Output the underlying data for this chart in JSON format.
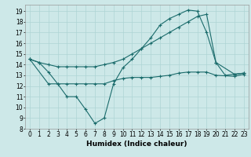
{
  "title": "",
  "xlabel": "Humidex (Indice chaleur)",
  "background_color": "#cde8e8",
  "grid_color": "#aed4d4",
  "line_color": "#1a6b6b",
  "xlim": [
    -0.5,
    23.5
  ],
  "ylim": [
    8,
    19.6
  ],
  "yticks": [
    8,
    9,
    10,
    11,
    12,
    13,
    14,
    15,
    16,
    17,
    18,
    19
  ],
  "xticks": [
    0,
    1,
    2,
    3,
    4,
    5,
    6,
    7,
    8,
    9,
    10,
    11,
    12,
    13,
    14,
    15,
    16,
    17,
    18,
    19,
    20,
    21,
    22,
    23
  ],
  "line1_x": [
    0,
    1,
    2,
    3,
    4,
    5,
    6,
    7,
    8,
    9,
    10,
    11,
    12,
    13,
    14,
    15,
    16,
    17,
    18,
    19,
    20,
    21,
    22,
    23
  ],
  "line1_y": [
    14.5,
    14.2,
    13.3,
    12.2,
    11.0,
    11.0,
    9.8,
    8.5,
    9.0,
    12.2,
    13.7,
    14.5,
    15.5,
    16.5,
    17.7,
    18.3,
    18.7,
    19.1,
    19.0,
    17.0,
    14.2,
    13.0,
    13.1,
    13.2
  ],
  "line2_x": [
    0,
    1,
    2,
    3,
    4,
    5,
    6,
    7,
    8,
    9,
    10,
    11,
    12,
    13,
    14,
    15,
    16,
    17,
    18,
    19,
    20,
    22,
    23
  ],
  "line2_y": [
    14.5,
    14.2,
    14.0,
    13.8,
    13.8,
    13.8,
    13.8,
    13.8,
    14.0,
    14.2,
    14.5,
    15.0,
    15.5,
    16.0,
    16.5,
    17.0,
    17.5,
    18.0,
    18.5,
    18.7,
    14.2,
    13.1,
    13.2
  ],
  "line3_x": [
    0,
    2,
    3,
    4,
    5,
    6,
    7,
    8,
    9,
    10,
    11,
    12,
    13,
    14,
    15,
    16,
    17,
    18,
    19,
    20,
    22,
    23
  ],
  "line3_y": [
    14.5,
    12.2,
    12.2,
    12.2,
    12.2,
    12.2,
    12.2,
    12.2,
    12.5,
    12.7,
    12.8,
    12.8,
    12.8,
    12.9,
    13.0,
    13.2,
    13.3,
    13.3,
    13.3,
    13.0,
    12.9,
    13.1
  ],
  "tick_fontsize": 5.5,
  "xlabel_fontsize": 6.5,
  "marker_size": 2.5,
  "lw": 0.8
}
